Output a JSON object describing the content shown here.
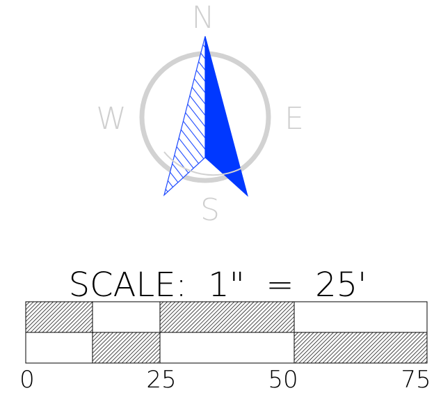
{
  "compass": {
    "north": "N",
    "south": "S",
    "east": "E",
    "west": "W",
    "ring_color": "#d0d0d0",
    "arrow_color": "#0038ff",
    "hatch_color": "#1c49ff"
  },
  "scale": {
    "title": "SCALE:  1\"  =  25'",
    "ticks": [
      "0",
      "25",
      "50",
      "75"
    ],
    "hatch_color": "#000000"
  }
}
